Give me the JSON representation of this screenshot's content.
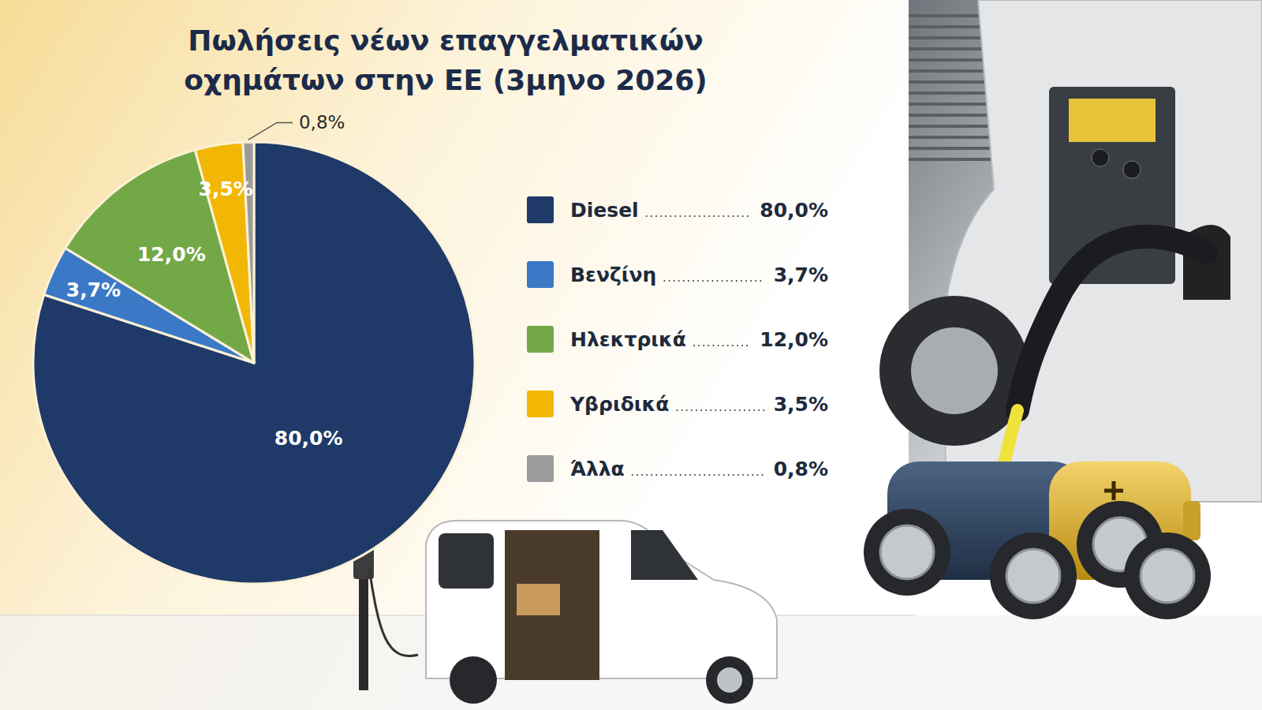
{
  "chart_data": {
    "type": "pie",
    "title": "Πωλήσεις νέων επαγγελματικών οχημάτων στην ΕΕ (3μηνο 2026)",
    "categories": [
      "Diesel",
      "Βενζίνη",
      "Ηλεκτρικά",
      "Υβριδικά",
      "Άλλα"
    ],
    "values": [
      80.0,
      3.7,
      12.0,
      3.5,
      0.8
    ],
    "value_labels": [
      "80,0%",
      "3,7%",
      "12,0%",
      "3,5%",
      "0,8%"
    ],
    "colors": [
      "#1f3a68",
      "#3b79c6",
      "#73a846",
      "#f2b705",
      "#9b9b9b"
    ],
    "data_labels": true,
    "legend": "right"
  }
}
